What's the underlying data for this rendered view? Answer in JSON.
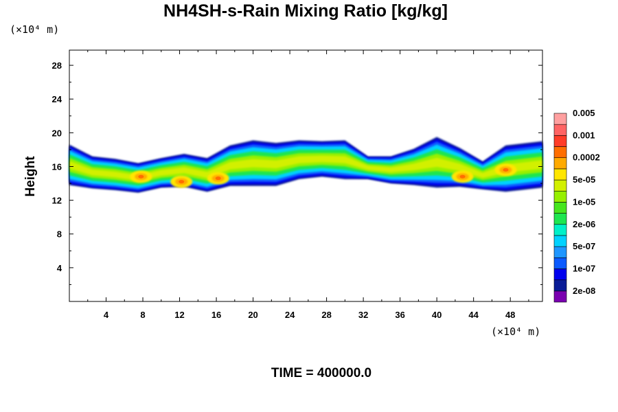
{
  "chart_data": {
    "type": "heatmap",
    "title": "NH4SH-s-Rain Mixing Ratio [kg/kg]",
    "xlabel": "",
    "ylabel": "Height",
    "x_unit": "(×10⁴ m)",
    "y_unit": "(×10⁴ m)",
    "xlim": [
      0,
      51.5
    ],
    "ylim": [
      0,
      29.8
    ],
    "x_ticks": [
      4,
      8,
      12,
      16,
      20,
      24,
      28,
      32,
      36,
      40,
      44,
      48
    ],
    "y_ticks": [
      4,
      8,
      12,
      16,
      20,
      24,
      28
    ],
    "time_label": "TIME = 400000.0",
    "colorbar": {
      "colors": [
        "#7a00b0",
        "#0a1c96",
        "#0000ee",
        "#0a5aff",
        "#1e96ff",
        "#00d2ff",
        "#00f0c8",
        "#1ee650",
        "#46e61e",
        "#96f000",
        "#d2f000",
        "#ffe600",
        "#ffaa00",
        "#ff6e00",
        "#ff3c28",
        "#ff6464",
        "#ffa0a0"
      ],
      "labels": [
        "2e-08",
        "1e-07",
        "5e-07",
        "2e-06",
        "1e-05",
        "5e-05",
        "0.0002",
        "0.001",
        "0.005"
      ]
    },
    "cloud_layer": {
      "base_height": [
        13.8,
        13.4,
        13.2,
        12.9,
        13.5,
        13.6,
        13.0,
        13.7,
        13.7,
        13.7,
        14.5,
        14.8,
        14.5,
        14.5,
        14.0,
        13.8,
        13.5,
        13.6,
        13.3,
        13.0,
        13.5
      ],
      "top_height": [
        18.6,
        17.2,
        16.9,
        16.4,
        17.0,
        17.5,
        17.0,
        18.5,
        19.1,
        18.8,
        19.1,
        19.0,
        19.1,
        17.2,
        17.2,
        18.1,
        19.5,
        18.2,
        16.6,
        18.5,
        19.0
      ],
      "x_positions": [
        0,
        2.5,
        5,
        7.5,
        10,
        12.5,
        15,
        17.5,
        20,
        22.5,
        25,
        27.5,
        30,
        32.5,
        35,
        37.5,
        40,
        42.5,
        45,
        47.5,
        51.5
      ]
    },
    "maxima": [
      {
        "x": 7.8,
        "y": 14.8,
        "value": "0.0002-0.001"
      },
      {
        "x": 12.2,
        "y": 14.2,
        "value": "0.0002"
      },
      {
        "x": 16.2,
        "y": 14.6,
        "value": "0.0002"
      },
      {
        "x": 42.8,
        "y": 14.8,
        "value": "0.0002"
      },
      {
        "x": 47.5,
        "y": 15.6,
        "value": "0.0002-0.001"
      }
    ],
    "grid": false
  }
}
